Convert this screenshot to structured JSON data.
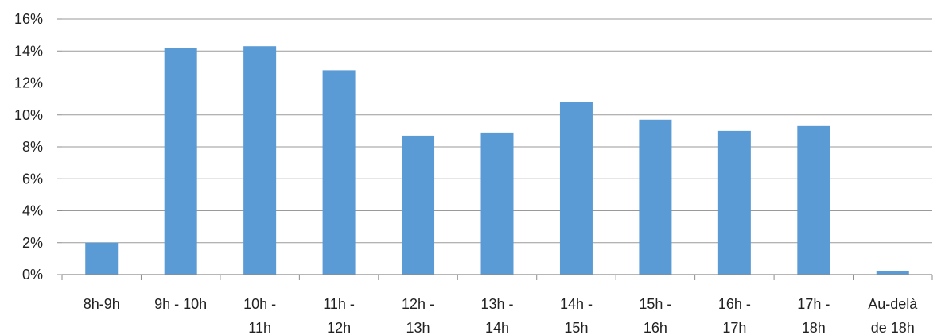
{
  "chart_data": {
    "type": "bar",
    "categories": [
      "8h-9h",
      "9h - 10h",
      "10h - 11h",
      "11h - 12h",
      "12h - 13h",
      "13h - 14h",
      "14h - 15h",
      "15h - 16h",
      "16h - 17h",
      "17h - 18h",
      "Au-delà de 18h"
    ],
    "category_lines": [
      [
        "8h-9h"
      ],
      [
        "9h - 10h"
      ],
      [
        "10h -",
        "11h"
      ],
      [
        "11h -",
        "12h"
      ],
      [
        "12h -",
        "13h"
      ],
      [
        "13h -",
        "14h"
      ],
      [
        "14h -",
        "15h"
      ],
      [
        "15h -",
        "16h"
      ],
      [
        "16h -",
        "17h"
      ],
      [
        "17h -",
        "18h"
      ],
      [
        "Au-delà",
        "de 18h"
      ]
    ],
    "values": [
      2.0,
      14.2,
      14.3,
      12.8,
      8.7,
      8.9,
      10.8,
      9.7,
      9.0,
      9.3,
      0.2
    ],
    "yticks": [
      "0%",
      "2%",
      "4%",
      "6%",
      "8%",
      "10%",
      "12%",
      "14%",
      "16%"
    ],
    "ylim": [
      0,
      16
    ],
    "ytick_step": 2,
    "title": "",
    "xlabel": "",
    "ylabel": "",
    "grid": true,
    "colors": {
      "bar": "#5b9bd5",
      "grid": "#9a9a9a",
      "axis": "#8c8c8c",
      "text": "#222222"
    }
  }
}
